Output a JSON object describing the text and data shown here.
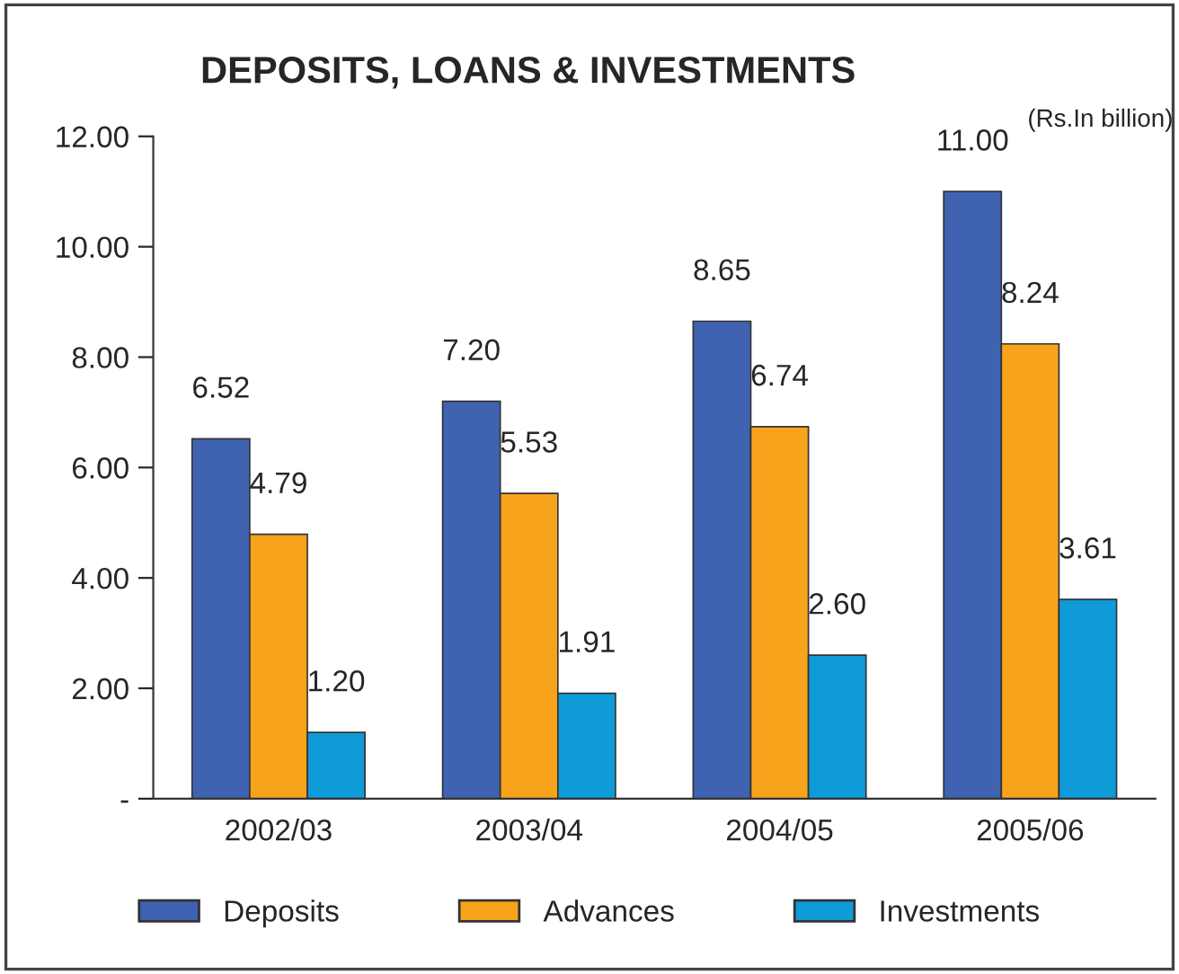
{
  "chart_data": {
    "type": "bar",
    "title": "DEPOSITS, LOANS & INVESTMENTS",
    "annotations": [
      "(Rs.In billion)"
    ],
    "categories": [
      "2002/03",
      "2003/04",
      "2004/05",
      "2005/06"
    ],
    "series": [
      {
        "name": "Deposits",
        "color": "#3f63b0",
        "values": [
          6.52,
          7.2,
          8.65,
          11.0
        ]
      },
      {
        "name": "Advances",
        "color": "#f7a31c",
        "values": [
          4.79,
          5.53,
          6.74,
          8.24
        ]
      },
      {
        "name": "Investments",
        "color": "#0f9ad8",
        "values": [
          1.2,
          1.91,
          2.6,
          3.61
        ]
      }
    ],
    "value_labels": [
      [
        "6.52",
        "7.20",
        "8.65",
        "11.00"
      ],
      [
        "4.79",
        "5.53",
        "6.74",
        "8.24"
      ],
      [
        "1.20",
        "1.91",
        "2.60",
        "3.61"
      ]
    ],
    "ylim": [
      0,
      12
    ],
    "yticks": [
      {
        "value": 0,
        "label": "-"
      },
      {
        "value": 2,
        "label": "2.00"
      },
      {
        "value": 4,
        "label": "4.00"
      },
      {
        "value": 6,
        "label": "6.00"
      },
      {
        "value": 8,
        "label": "8.00"
      },
      {
        "value": 10,
        "label": "10.00"
      },
      {
        "value": 12,
        "label": "12.00"
      }
    ],
    "grid": false,
    "legend": "bottom"
  }
}
